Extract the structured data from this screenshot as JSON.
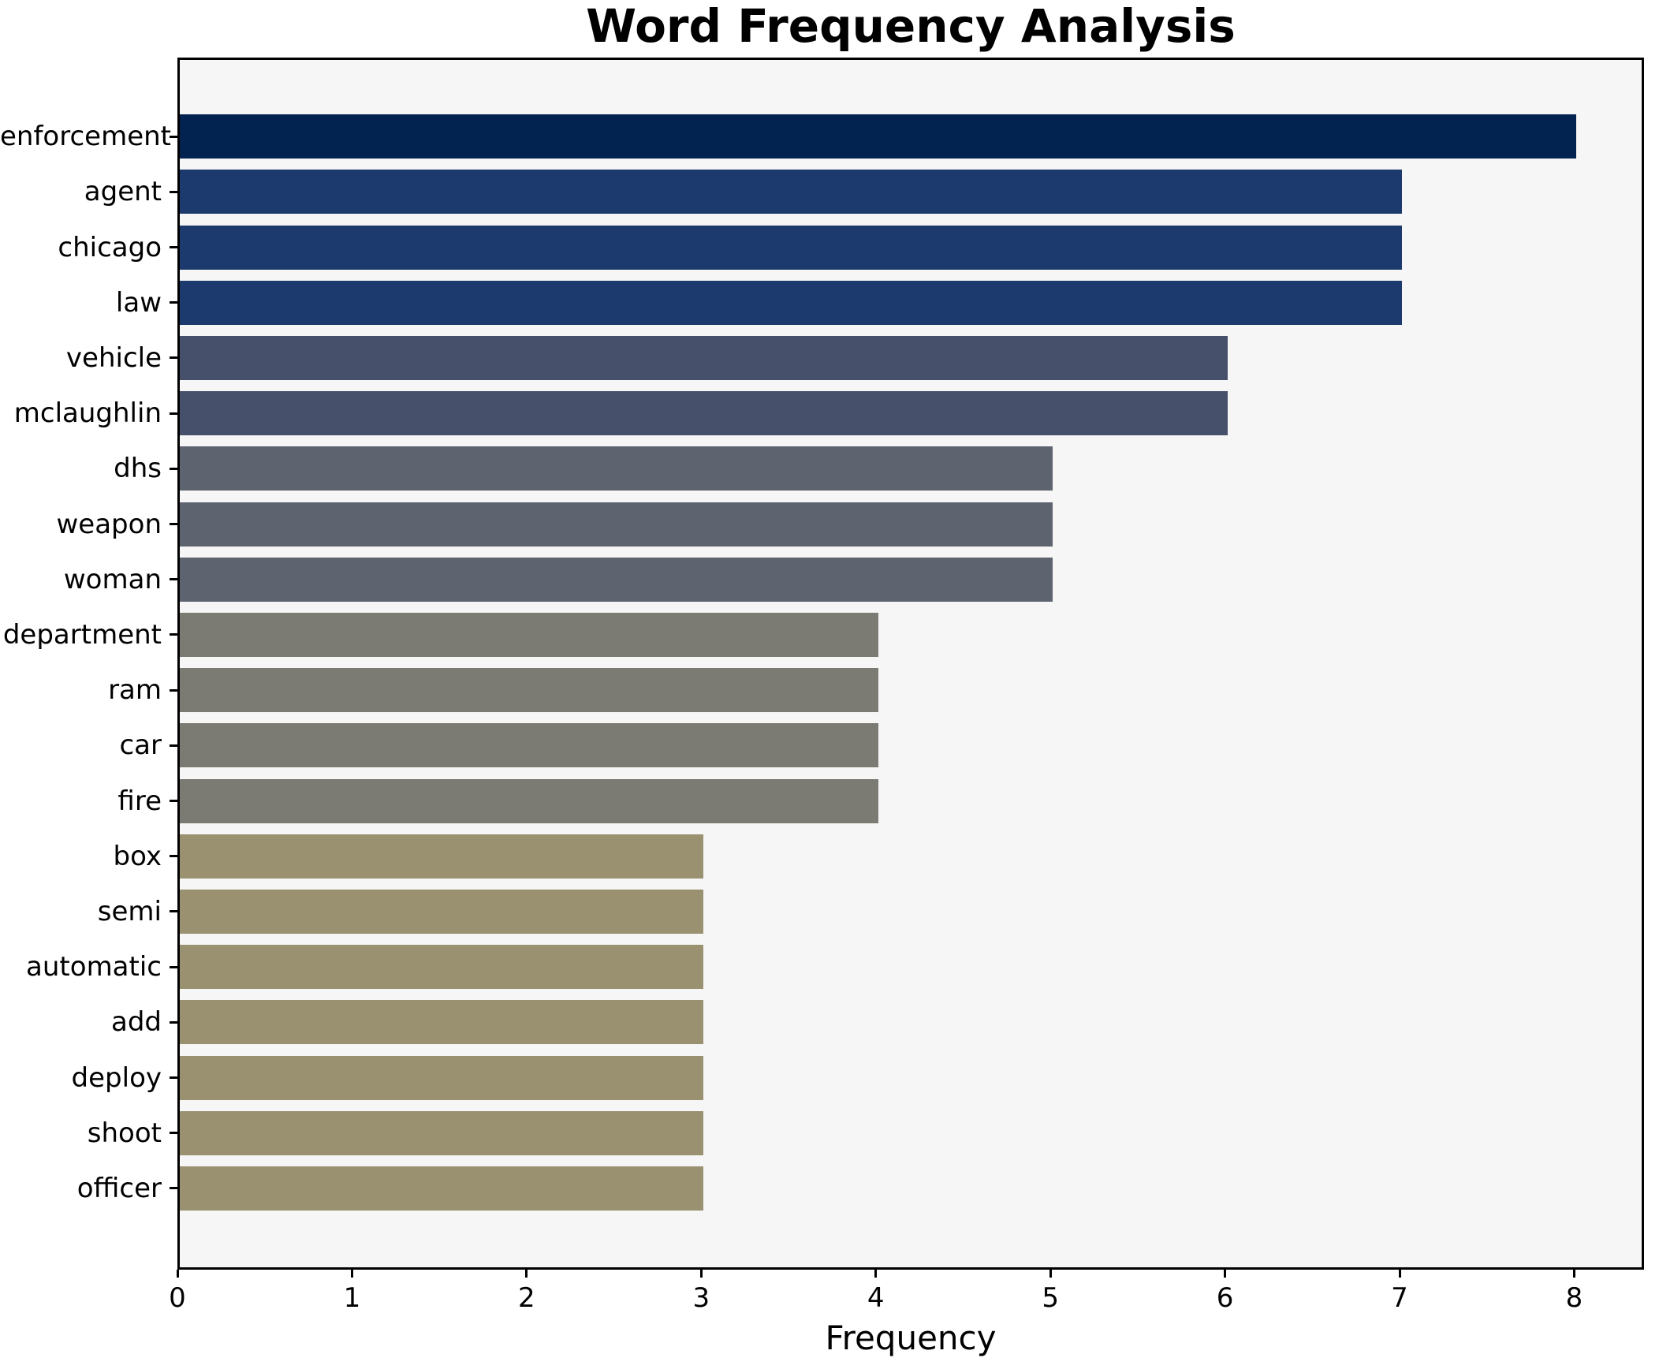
{
  "figure": {
    "background": "#ffffff",
    "plot_background": "#f6f6f6",
    "spine_color": "#000000",
    "text_color": "#000000"
  },
  "chart_data": {
    "type": "bar",
    "orientation": "horizontal",
    "title": "Word Frequency Analysis",
    "xlabel": "Frequency",
    "ylabel": "",
    "categories": [
      "enforcement",
      "agent",
      "chicago",
      "law",
      "vehicle",
      "mclaughlin",
      "dhs",
      "weapon",
      "woman",
      "department",
      "ram",
      "car",
      "fire",
      "box",
      "semi",
      "automatic",
      "add",
      "deploy",
      "shoot",
      "officer"
    ],
    "values": [
      8,
      7,
      7,
      7,
      6,
      6,
      5,
      5,
      5,
      4,
      4,
      4,
      4,
      3,
      3,
      3,
      3,
      3,
      3,
      3
    ],
    "bar_colors": [
      "#02234f",
      "#1d3a6e",
      "#1d3a6e",
      "#1d3a6e",
      "#46506b",
      "#46506b",
      "#5e6370",
      "#5e6370",
      "#5e6370",
      "#7b7a73",
      "#7b7a73",
      "#7b7a73",
      "#7b7a73",
      "#999170",
      "#999170",
      "#999170",
      "#999170",
      "#999170",
      "#999170",
      "#999170"
    ],
    "xlim": [
      0,
      8.4
    ],
    "xticks": [
      0,
      1,
      2,
      3,
      4,
      5,
      6,
      7,
      8
    ],
    "xtick_labels": [
      "0",
      "1",
      "2",
      "3",
      "4",
      "5",
      "6",
      "7",
      "8"
    ],
    "grid": false,
    "legend": null
  }
}
